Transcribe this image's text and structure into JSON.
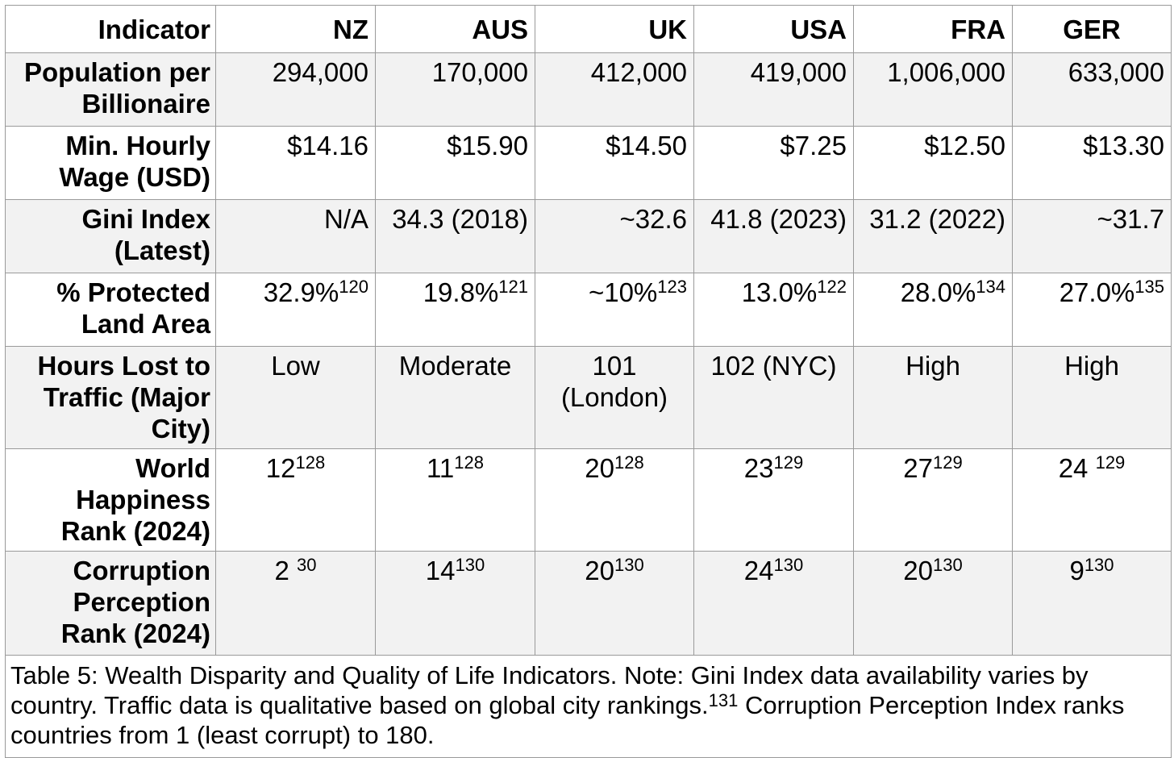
{
  "header": {
    "indicator": "Indicator",
    "countries": [
      "NZ",
      "AUS",
      "UK",
      "USA",
      "FRA",
      "GER"
    ]
  },
  "rows": [
    {
      "label": "Population per Billionaire",
      "cells": [
        {
          "v": "294,000",
          "s": ""
        },
        {
          "v": "170,000",
          "s": ""
        },
        {
          "v": "412,000",
          "s": ""
        },
        {
          "v": "419,000",
          "s": ""
        },
        {
          "v": "1,006,000",
          "s": ""
        },
        {
          "v": "633,000",
          "s": ""
        }
      ]
    },
    {
      "label": "Min. Hourly Wage (USD)",
      "cells": [
        {
          "v": "$14.16",
          "s": ""
        },
        {
          "v": "$15.90",
          "s": ""
        },
        {
          "v": "$14.50",
          "s": ""
        },
        {
          "v": "$7.25",
          "s": ""
        },
        {
          "v": "$12.50",
          "s": ""
        },
        {
          "v": "$13.30",
          "s": ""
        }
      ]
    },
    {
      "label": "Gini Index (Latest)",
      "cells": [
        {
          "v": "N/A",
          "s": ""
        },
        {
          "v": "34.3 (2018)",
          "s": ""
        },
        {
          "v": "~32.6",
          "s": ""
        },
        {
          "v": "41.8 (2023)",
          "s": ""
        },
        {
          "v": "31.2 (2022)",
          "s": ""
        },
        {
          "v": "~31.7",
          "s": ""
        }
      ]
    },
    {
      "label": "% Protected Land Area",
      "cells": [
        {
          "v": "32.9%",
          "s": "120"
        },
        {
          "v": "19.8%",
          "s": "121"
        },
        {
          "v": "~10%",
          "s": "123"
        },
        {
          "v": "13.0%",
          "s": "122"
        },
        {
          "v": "28.0%",
          "s": "134"
        },
        {
          "v": "27.0%",
          "s": "135"
        }
      ]
    },
    {
      "label": "Hours Lost to Traffic (Major City)",
      "cells": [
        {
          "v": "Low",
          "s": ""
        },
        {
          "v": "Moderate",
          "s": ""
        },
        {
          "v": "101 (London)",
          "s": ""
        },
        {
          "v": "102 (NYC)",
          "s": ""
        },
        {
          "v": "High",
          "s": ""
        },
        {
          "v": "High",
          "s": ""
        }
      ]
    },
    {
      "label": "World Happiness Rank (2024)",
      "cells": [
        {
          "v": "12",
          "s": "128"
        },
        {
          "v": "11",
          "s": "128"
        },
        {
          "v": "20",
          "s": "128"
        },
        {
          "v": "23",
          "s": "129"
        },
        {
          "v": "27",
          "s": "129"
        },
        {
          "v": "24 ",
          "s": "129"
        }
      ]
    },
    {
      "label": "Corruption Perception Rank (2024)",
      "cells": [
        {
          "v": "2 ",
          "s": "30"
        },
        {
          "v": "14",
          "s": "130"
        },
        {
          "v": "20",
          "s": "130"
        },
        {
          "v": "24",
          "s": "130"
        },
        {
          "v": "20",
          "s": "130"
        },
        {
          "v": "9",
          "s": "130"
        }
      ]
    }
  ],
  "caption": {
    "before": "Table 5: Wealth Disparity and Quality of Life Indicators. Note: Gini Index data availability varies by country. Traffic data is qualitative based on global city rankings.",
    "sup": "131",
    "after": " Corruption Perception Index ranks countries from 1 (least corrupt) to 180."
  }
}
